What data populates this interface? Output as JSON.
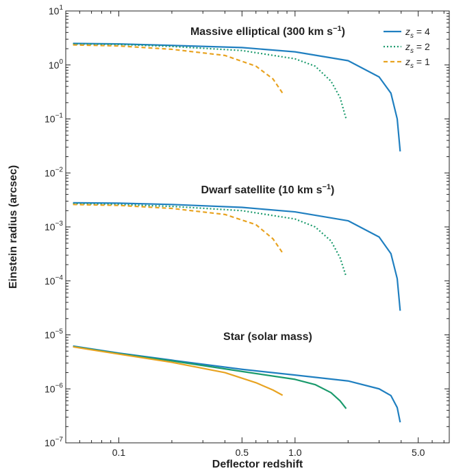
{
  "chart_data": {
    "type": "line",
    "xlabel": "Deflector redshift",
    "ylabel": "Einstein radius (arcsec)",
    "x_scale": "log",
    "y_scale": "log",
    "xlim": [
      0.05,
      7.5
    ],
    "ylim": [
      1e-07,
      10
    ],
    "x_ticks": [
      {
        "value": 0.1,
        "label": "0.1"
      },
      {
        "value": 0.5,
        "label": "0.5"
      },
      {
        "value": 1.0,
        "label": "1.0"
      },
      {
        "value": 5.0,
        "label": "5.0"
      }
    ],
    "y_ticks": [
      {
        "value": 10,
        "base": "10",
        "exp": "1"
      },
      {
        "value": 1,
        "base": "10",
        "exp": "0"
      },
      {
        "value": 0.1,
        "base": "10",
        "exp": "−1"
      },
      {
        "value": 0.01,
        "base": "10",
        "exp": "−2"
      },
      {
        "value": 0.001,
        "base": "10",
        "exp": "−3"
      },
      {
        "value": 0.0001,
        "base": "10",
        "exp": "−4"
      },
      {
        "value": 1e-05,
        "base": "10",
        "exp": "−5"
      },
      {
        "value": 1e-06,
        "base": "10",
        "exp": "−6"
      },
      {
        "value": 1e-07,
        "base": "10",
        "exp": "−7"
      }
    ],
    "grid": false,
    "legend_position": "top-right",
    "legend": [
      {
        "var": "z",
        "sub": "s",
        "eq": " = 4",
        "color": "#1f7fc0",
        "style": "solid"
      },
      {
        "var": "z",
        "sub": "s",
        "eq": " = 2",
        "color": "#1a9a6c",
        "style": "dotted"
      },
      {
        "var": "z",
        "sub": "s",
        "eq": " = 1",
        "color": "#e8a321",
        "style": "dashed"
      }
    ],
    "annotations": [
      {
        "text": "Massive elliptical (300 km s",
        "sup": "−1",
        "close": ")"
      },
      {
        "text": "Dwarf satellite (10 km s",
        "sup": "−1",
        "close": ")"
      },
      {
        "text": "Star (solar mass)",
        "sup": "",
        "close": ""
      }
    ],
    "groups": [
      {
        "name": "Massive elliptical",
        "series": [
          {
            "zs": 4,
            "color": "#1f7fc0",
            "style": "solid",
            "x": [
              0.055,
              0.1,
              0.2,
              0.5,
              1.0,
              2.0,
              3.0,
              3.5,
              3.8,
              3.95
            ],
            "y": [
              2.5,
              2.45,
              2.3,
              2.1,
              1.75,
              1.2,
              0.6,
              0.3,
              0.1,
              0.025
            ]
          },
          {
            "zs": 2,
            "color": "#1a9a6c",
            "style": "dotted",
            "x": [
              0.055,
              0.1,
              0.2,
              0.5,
              1.0,
              1.3,
              1.6,
              1.8,
              1.95
            ],
            "y": [
              2.45,
              2.4,
              2.2,
              1.85,
              1.3,
              0.95,
              0.5,
              0.25,
              0.1
            ]
          },
          {
            "zs": 1,
            "color": "#e8a321",
            "style": "dashed",
            "x": [
              0.055,
              0.1,
              0.2,
              0.4,
              0.6,
              0.75,
              0.85
            ],
            "y": [
              2.35,
              2.25,
              1.95,
              1.5,
              0.95,
              0.55,
              0.3
            ]
          }
        ]
      },
      {
        "name": "Dwarf satellite",
        "series": [
          {
            "zs": 4,
            "color": "#1f7fc0",
            "style": "solid",
            "x": [
              0.055,
              0.1,
              0.2,
              0.5,
              1.0,
              2.0,
              3.0,
              3.5,
              3.8,
              3.95
            ],
            "y": [
              0.0028,
              0.00275,
              0.0026,
              0.0023,
              0.0019,
              0.0013,
              0.00065,
              0.00032,
              0.00011,
              2.8e-05
            ]
          },
          {
            "zs": 2,
            "color": "#1a9a6c",
            "style": "dotted",
            "x": [
              0.055,
              0.1,
              0.2,
              0.5,
              1.0,
              1.3,
              1.6,
              1.8,
              1.95
            ],
            "y": [
              0.0027,
              0.0026,
              0.0024,
              0.002,
              0.0014,
              0.001,
              0.00055,
              0.00027,
              0.00012
            ]
          },
          {
            "zs": 1,
            "color": "#e8a321",
            "style": "dashed",
            "x": [
              0.055,
              0.1,
              0.2,
              0.4,
              0.6,
              0.75,
              0.85
            ],
            "y": [
              0.0026,
              0.0025,
              0.0022,
              0.0017,
              0.0011,
              0.0006,
              0.00033
            ]
          }
        ]
      },
      {
        "name": "Star (solar mass)",
        "series": [
          {
            "zs": 4,
            "color": "#1f7fc0",
            "style": "solid",
            "x": [
              0.055,
              0.1,
              0.2,
              0.5,
              1.0,
              2.0,
              3.0,
              3.5,
              3.8,
              3.95
            ],
            "y": [
              6.2e-06,
              4.6e-06,
              3.4e-06,
              2.3e-06,
              1.8e-06,
              1.4e-06,
              1e-06,
              7.5e-07,
              4.5e-07,
              2.4e-07
            ]
          },
          {
            "zs": 2,
            "color": "#1a9a6c",
            "style": "solid",
            "x": [
              0.055,
              0.1,
              0.2,
              0.5,
              1.0,
              1.3,
              1.6,
              1.8,
              1.95
            ],
            "y": [
              6.1e-06,
              4.5e-06,
              3.3e-06,
              2.1e-06,
              1.5e-06,
              1.2e-06,
              8.5e-07,
              6e-07,
              4.3e-07
            ]
          },
          {
            "zs": 1,
            "color": "#e8a321",
            "style": "solid",
            "x": [
              0.055,
              0.1,
              0.2,
              0.4,
              0.6,
              0.75,
              0.85
            ],
            "y": [
              6e-06,
              4.4e-06,
              3.1e-06,
              2e-06,
              1.3e-06,
              9.5e-07,
              7.6e-07
            ]
          }
        ]
      }
    ]
  }
}
